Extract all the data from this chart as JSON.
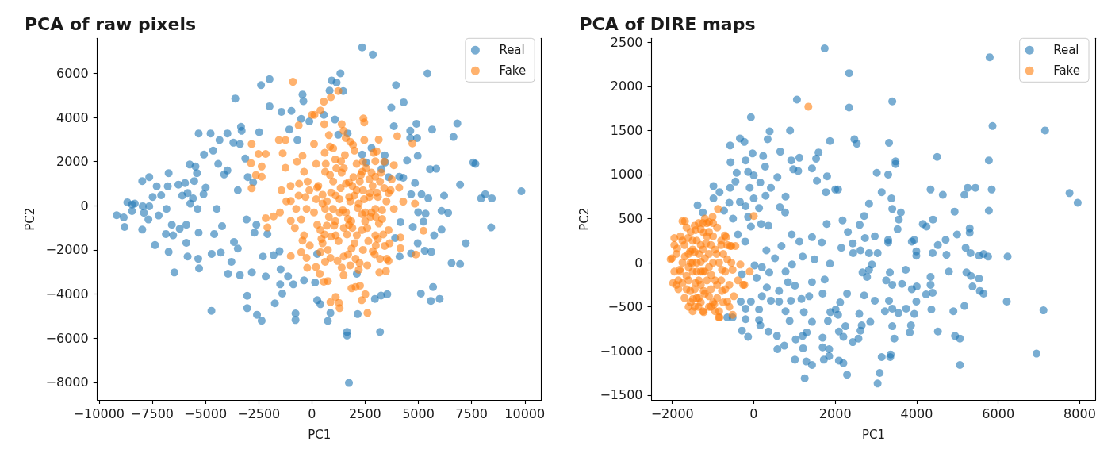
{
  "chart_data": [
    {
      "type": "scatter",
      "title": "PCA of raw pixels",
      "xlabel": "PC1",
      "ylabel": "PC2",
      "marker": "circle",
      "legend": "top right",
      "xlim": [
        -10080,
        10780
      ],
      "ylim": [
        -8800,
        7590
      ],
      "xticks": [
        -10000,
        -7500,
        -5000,
        -2500,
        0,
        2500,
        5000,
        7500,
        10000
      ],
      "yticks": [
        -8000,
        -6000,
        -4000,
        -2000,
        0,
        2000,
        4000,
        6000
      ],
      "series": [
        {
          "name": "Real",
          "color": "#1f77b4",
          "x": [
            -9170,
            -8800,
            -8670,
            -8840,
            -8450,
            -8320,
            -8450,
            -7950,
            -7970,
            -7640,
            -7970,
            -7890,
            -7640,
            -7680,
            -7480,
            -7290,
            -7370,
            -7200,
            -7080,
            -6770,
            -6730,
            -6830,
            -6860,
            -6730,
            -6520,
            -6460,
            -6580,
            -6270,
            -5960,
            -6210,
            -6090,
            -5840,
            -5900,
            -5900,
            -5840,
            -5740,
            -5710,
            -5590,
            -5470,
            -5400,
            -5530,
            -5370,
            -5320,
            -5340,
            -5300,
            -5320,
            -5070,
            -4990,
            -5090,
            -4760,
            -4640,
            -4720,
            -4710,
            -4590,
            -4470,
            -4400,
            -4340,
            -4280,
            -4220,
            -4120,
            -3970,
            -3970,
            -3940,
            -3780,
            -3690,
            -3600,
            -3480,
            -3380,
            -3330,
            -3300,
            -3380,
            -3480,
            -3660,
            -3130,
            -3070,
            -3010,
            -3040,
            -3040,
            -2820,
            -2760,
            -2700,
            -2580,
            -2480,
            -2610,
            -2390,
            -2360,
            -2300,
            -2170,
            -2090,
            -1990,
            -1990,
            -1800,
            -1740,
            -1520,
            -1470,
            -1430,
            -1490,
            -1390,
            -1120,
            -1060,
            -960,
            -870,
            -770,
            -770,
            -440,
            -400,
            -370,
            -500,
            -680,
            -120,
            2360,
            2860,
            1340,
            930,
            1160,
            830,
            1470,
            3950,
            5430,
            4310,
            3730,
            560,
            1080,
            3850,
            4910,
            5650,
            6830,
            6650,
            4620,
            4620,
            4940,
            1240,
            1680,
            2800,
            3420,
            2360,
            4970,
            4470,
            3440,
            3270,
            5550,
            5840,
            7580,
            7680,
            4840,
            4290,
            6960,
            4660,
            5150,
            5470,
            6210,
            8140,
            7950,
            8450,
            9840,
            4990,
            5340,
            6090,
            6400,
            4740,
            5240,
            6090,
            8420,
            5740,
            4970,
            7230,
            4660,
            5300,
            5610,
            6560,
            6960,
            4120,
            3910,
            4160,
            250,
            150,
            250,
            400,
            870,
            750,
            2150,
            2960,
            3250,
            3540,
            5120,
            5690,
            5590,
            6000,
            1650,
            1650,
            3200,
            1740,
            2110,
            4100,
            3600,
            2550
          ],
          "values": [
            -430,
            -960,
            160,
            -530,
            60,
            100,
            -240,
            -20,
            1120,
            1300,
            -1080,
            -320,
            -20,
            -620,
            400,
            880,
            -1780,
            -440,
            480,
            880,
            1480,
            -140,
            -1280,
            -2090,
            -1340,
            -3020,
            -860,
            960,
            1030,
            -1040,
            460,
            580,
            -860,
            -1680,
            -2300,
            1870,
            100,
            340,
            1780,
            1480,
            1120,
            -140,
            -1220,
            -2400,
            -2840,
            3280,
            2320,
            820,
            520,
            3280,
            2500,
            -4760,
            -2180,
            -1280,
            -140,
            1900,
            2980,
            -2120,
            -920,
            1420,
            3280,
            1600,
            -3080,
            -2540,
            2860,
            4860,
            700,
            2800,
            3580,
            3400,
            -3140,
            -1940,
            -1640,
            2140,
            -620,
            1300,
            -4080,
            -4640,
            -3020,
            1060,
            -1220,
            -4940,
            3340,
            -860,
            5470,
            -5210,
            -2300,
            -3200,
            -1280,
            5740,
            4510,
            -2240,
            -4420,
            -2060,
            -2880,
            4260,
            -3560,
            -3980,
            -3200,
            3460,
            4300,
            -3560,
            -4880,
            -5180,
            5040,
            4740,
            -3380,
            3940,
            2980,
            3820,
            7180,
            6850,
            6000,
            5680,
            5590,
            5220,
            5200,
            5470,
            6000,
            4690,
            4450,
            4120,
            3910,
            3610,
            3720,
            3460,
            3730,
            3120,
            3400,
            3070,
            3070,
            3220,
            3280,
            2620,
            2290,
            2320,
            2260,
            2050,
            1960,
            1660,
            1660,
            1680,
            1960,
            1900,
            1030,
            1270,
            960,
            520,
            520,
            340,
            460,
            520,
            340,
            340,
            660,
            -290,
            -360,
            -230,
            -320,
            -960,
            -720,
            -1080,
            -980,
            -1340,
            -1700,
            -1700,
            -2160,
            -2040,
            -2090,
            -2600,
            -2640,
            -2300,
            -1460,
            -740,
            -2180,
            -3480,
            -4280,
            -4460,
            -4860,
            -5220,
            -4910,
            -4220,
            -4070,
            -4010,
            -3980,
            -3680,
            -4310,
            -4220,
            -5720,
            -5880,
            -5720,
            -8030,
            -3080,
            1320,
            1300,
            1960
          ]
        },
        {
          "name": "Fake",
          "color": "#ff7f0e",
          "x": [
            -890,
            -2830,
            -2860,
            -2830,
            -2360,
            -2510,
            -2170,
            -2630,
            -2360,
            -2170,
            -2090,
            -1800,
            -1550,
            -1240,
            -1370,
            -620,
            -990,
            -250,
            -220,
            -440,
            -990,
            -1430,
            -1240,
            -620,
            -990,
            -440,
            0,
            1240,
            560,
            890,
            400,
            120,
            580,
            2420,
            2460,
            1490,
            1590,
            2460,
            3140,
            4010,
            4720,
            1930,
            850,
            3040,
            3850,
            2980,
            4100,
            4290,
            4840,
            5240,
            4160,
            4160,
            4880,
            3520,
            3480,
            3170,
            2050,
            2260,
            1860,
            2510,
            2340,
            2610,
            1120,
            1270,
            1300,
            870,
            560,
            750,
            190,
            370,
            870,
            1490,
            2240,
            2860,
            3420,
            3600,
            3850,
            3600,
            2980,
            2360,
            1740,
            1120,
            500,
            250,
            620,
            1120,
            1740,
            2360,
            2980,
            1370,
            620,
            250,
            1990,
            2730,
            990,
            2110,
            2980,
            1490,
            1860,
            620,
            -370,
            -250,
            -500,
            -120,
            -740,
            -370,
            500,
            800,
            1300,
            1600,
            1900,
            2200,
            2500,
            2700,
            3100,
            3300,
            1000,
            400,
            1500,
            2000,
            2600,
            3200,
            700,
            1800,
            2400,
            1100,
            3000,
            1400,
            200,
            3400,
            2800,
            1700,
            600,
            2100,
            -200,
            3700,
            100,
            300,
            450,
            650,
            750,
            900,
            1050,
            1150,
            1250,
            1350,
            1450,
            1550,
            1650,
            1750,
            1850,
            1950,
            2050,
            2150,
            2250,
            2350,
            2450,
            2550,
            2650,
            2750,
            2850,
            2950,
            3050,
            3150,
            3250,
            3350,
            3500,
            3650,
            3750,
            200,
            400,
            700,
            850,
            1000,
            1200,
            1400,
            1600,
            1800,
            2000,
            2200,
            2400,
            2600,
            2800,
            3000,
            3200,
            3400,
            -100,
            -300,
            -600,
            -800,
            -500,
            -1000,
            -1200,
            -1500,
            -700,
            1300,
            1700,
            2100,
            2500,
            900,
            500,
            1900,
            2300,
            2700,
            3100,
            1100,
            600,
            1500,
            2900,
            3300,
            100,
            3600,
            2400,
            1800,
            800,
            1400
          ],
          "values": [
            5620,
            2800,
            1930,
            790,
            1780,
            2350,
            2350,
            1390,
            1320,
            -560,
            -980,
            -480,
            2980,
            2980,
            2380,
            3640,
            -2280,
            -2360,
            -2810,
            -1580,
            -680,
            700,
            1720,
            460,
            220,
            2260,
            4120,
            5200,
            4720,
            4920,
            4320,
            4120,
            3700,
            3960,
            3780,
            3400,
            3070,
            2980,
            3000,
            3160,
            2830,
            2760,
            2680,
            2470,
            1840,
            1320,
            820,
            190,
            100,
            -1130,
            -1440,
            -1920,
            -2210,
            -2400,
            -2960,
            -3020,
            -3680,
            -3620,
            -3740,
            -4010,
            -4280,
            -4860,
            -4130,
            -4400,
            -4640,
            -4370,
            -3440,
            -3410,
            -2780,
            -3080,
            -2360,
            -2300,
            -2600,
            -2060,
            -1820,
            -1100,
            -140,
            580,
            -140,
            -380,
            -860,
            -1340,
            -1700,
            -860,
            -140,
            460,
            1060,
            1540,
            2020,
            2020,
            1540,
            820,
            460,
            580,
            -140,
            -1340,
            -1340,
            -3140,
            -1940,
            -2540,
            1540,
            -140,
            -620,
            700,
            -140,
            -1340,
            500,
            -500,
            300,
            -300,
            900,
            100,
            -700,
            1200,
            400,
            -600,
            1100,
            -1100,
            -1000,
            -1700,
            -1000,
            1100,
            200,
            200,
            700,
            -700,
            -1800,
            1500,
            300,
            2000,
            -300,
            -2200,
            2400,
            1900,
            1100,
            700,
            -300,
            900,
            -1500,
            1900,
            -2000,
            600,
            -900,
            1700,
            -1600,
            800,
            -200,
            2300,
            -1300,
            400,
            -700,
            1300,
            -2400,
            -100,
            1100,
            -1100,
            300,
            1700,
            -1600,
            -500,
            900,
            -2200,
            600,
            -800,
            1500,
            -1300,
            200,
            -1700,
            1200,
            1900,
            -2100,
            -900,
            1400,
            2600,
            -2500,
            -2800,
            1000,
            -2700,
            2500,
            -2900,
            2000,
            -2700,
            1500,
            -500,
            -2400,
            800,
            -1800,
            400,
            1000,
            -1000,
            -2100,
            900,
            200,
            -300,
            2000,
            -300,
            -600,
            700,
            -300,
            -1400,
            100,
            -1000,
            1400,
            400,
            -1500,
            2100,
            -1300,
            1700,
            2400,
            -200,
            2800,
            -2500,
            -2000,
            2900,
            3200,
            3700
          ]
        }
      ]
    },
    {
      "type": "scatter",
      "title": "PCA of DIRE maps",
      "xlabel": "PC1",
      "ylabel": "PC2",
      "marker": "circle",
      "legend": "top right",
      "xlim": [
        -2510,
        8390
      ],
      "ylim": [
        -1556,
        2545
      ],
      "xticks": [
        -2000,
        0,
        2000,
        4000,
        6000,
        8000
      ],
      "yticks": [
        -1500,
        -1000,
        -500,
        0,
        500,
        1000,
        1500,
        2000,
        2500
      ],
      "series": [
        {
          "name": "Real",
          "color": "#1f77b4",
          "x": [
            1740,
            1060,
            -70,
            390,
            340,
            890,
            1870,
            -340,
            -230,
            -580,
            -570,
            -200,
            -30,
            230,
            650,
            920,
            1120,
            1590,
            1530,
            1430,
            970,
            1090,
            280,
            -420,
            -140,
            0,
            580,
            1800,
            1550,
            160,
            -450,
            -990,
            -580,
            -100,
            420,
            1770,
            2000,
            -840,
            -990,
            290,
            780,
            0,
            -1380,
            -340,
            -600,
            -200,
            640,
            770,
            -1250,
            -730,
            130,
            -140,
            180,
            360,
            -70,
            1790,
            -510,
            930,
            1430,
            1120,
            1670,
            680,
            -210,
            -390,
            310,
            520,
            1200,
            1490,
            1870,
            20,
            200,
            380,
            780,
            940,
            840,
            1010,
            1430,
            1740,
            -290,
            70,
            320,
            620,
            200,
            -70,
            420,
            620,
            910,
            1170,
            1360,
            1690,
            -320,
            -200,
            130,
            780,
            1230,
            1880,
            2010,
            -200,
            130,
            160,
            880,
            1430,
            1820,
            -290,
            -140,
            360,
            570,
            750,
            1030,
            1200,
            1300,
            1690,
            580,
            1210,
            1690,
            1850,
            1010,
            1290,
            1430,
            1720,
            1250,
            1850,
            -520,
            -650,
            5790,
            2340,
            2340,
            3400,
            5860,
            7150,
            2470,
            2530,
            3320,
            4500,
            3480,
            3480,
            5770,
            3020,
            3300,
            2070,
            3140,
            4340,
            4640,
            5170,
            5250,
            5440,
            5840,
            7750,
            7950,
            2830,
            3380,
            3400,
            3610,
            3560,
            4930,
            5770,
            2710,
            2180,
            2600,
            2310,
            3530,
            4150,
            4240,
            4400,
            5300,
            5300,
            4990,
            4710,
            4520,
            3940,
            3880,
            2970,
            2730,
            3300,
            3300,
            2430,
            2150,
            2440,
            2620,
            2830,
            3040,
            3990,
            3990,
            4390,
            4730,
            5200,
            5320,
            5530,
            5640,
            5750,
            6230,
            2900,
            2830,
            2670,
            2780,
            3730,
            3340,
            3250,
            3400,
            3640,
            4790,
            5220,
            5330,
            5530,
            5370,
            5550,
            5640,
            3880,
            4000,
            4340,
            4340,
            4390,
            4230,
            3990,
            4360,
            4900,
            5170,
            6210,
            7110,
            3940,
            3740,
            3550,
            3400,
            3320,
            3220,
            2970,
            2590,
            2710,
            2290,
            2120,
            2070,
            2250,
            2650,
            2860,
            2620,
            2570,
            2430,
            2200,
            2090,
            3400,
            3450,
            3860,
            3830,
            4520,
            4940,
            5060,
            3140,
            3360,
            3350,
            3090,
            3040,
            5060,
            6940,
            2090,
            2200,
            2290
          ],
          "values": [
            2430,
            1850,
            1650,
            1490,
            1400,
            1500,
            1380,
            1410,
            1370,
            1330,
            1140,
            1160,
            1240,
            1210,
            1260,
            1160,
            1190,
            1250,
            1180,
            1070,
            1060,
            1040,
            1090,
            1020,
            1030,
            990,
            970,
            980,
            930,
            910,
            920,
            870,
            850,
            850,
            850,
            800,
            830,
            800,
            730,
            760,
            750,
            730,
            650,
            690,
            680,
            640,
            630,
            570,
            570,
            590,
            620,
            520,
            440,
            420,
            410,
            440,
            500,
            320,
            290,
            240,
            230,
            190,
            240,
            320,
            140,
            50,
            70,
            40,
            -10,
            -30,
            -50,
            -110,
            -100,
            -20,
            -220,
            -260,
            -220,
            -190,
            -130,
            -170,
            -280,
            -320,
            -380,
            -440,
            -430,
            -440,
            -430,
            -410,
            -380,
            -350,
            -440,
            -520,
            -530,
            -550,
            -560,
            -560,
            -530,
            -640,
            -650,
            -710,
            -660,
            -670,
            -660,
            -770,
            -840,
            -780,
            -830,
            -940,
            -870,
            -830,
            -790,
            -850,
            -980,
            -970,
            -960,
            -980,
            -1100,
            -1120,
            -1160,
            -1100,
            -1310,
            -1060,
            -620,
            -620,
            2330,
            2150,
            1760,
            1830,
            1550,
            1500,
            1400,
            1350,
            1360,
            1200,
            1150,
            1120,
            1160,
            1020,
            1000,
            830,
            800,
            830,
            770,
            770,
            850,
            850,
            830,
            790,
            680,
            670,
            730,
            610,
            570,
            490,
            580,
            590,
            530,
            480,
            430,
            350,
            380,
            440,
            410,
            490,
            390,
            340,
            320,
            260,
            200,
            260,
            240,
            300,
            280,
            260,
            230,
            220,
            170,
            110,
            140,
            110,
            110,
            130,
            80,
            110,
            90,
            170,
            110,
            80,
            100,
            70,
            70,
            -20,
            -80,
            -110,
            -160,
            -80,
            -110,
            -200,
            -250,
            -240,
            -100,
            -110,
            -150,
            -180,
            -270,
            -320,
            -350,
            -300,
            -270,
            -160,
            -250,
            -340,
            -360,
            -440,
            -530,
            -550,
            -490,
            -440,
            -540,
            -580,
            -520,
            -570,
            -520,
            -430,
            -550,
            -430,
            -580,
            -370,
            -350,
            -450,
            -590,
            -720,
            -710,
            -670,
            -770,
            -860,
            -900,
            -840,
            -780,
            -720,
            -860,
            -710,
            -790,
            -780,
            -830,
            -860,
            -1070,
            -1040,
            -1070,
            -1250,
            -1370,
            -1160,
            -1030,
            -1110,
            -1140,
            -1270
          ]
        },
        {
          "name": "Fake",
          "color": "#ff7f0e",
          "x": [
            -2010,
            -1980,
            -1950,
            -1690,
            -1230,
            -880,
            -1010,
            -840,
            -520,
            -490,
            -680,
            -580,
            -330,
            -100,
            -260,
            0,
            -1490,
            -1820,
            -1430,
            -1100,
            -1170,
            -1560,
            -1300,
            -1040,
            -1430,
            -1100,
            -780,
            -780,
            -910,
            -1690,
            -970,
            -650,
            -1230,
            -1620,
            -1750,
            -650,
            -520,
            -1360,
            -1880,
            -1560,
            -1230,
            -450,
            -390,
            -860,
            -230,
            -550,
            -710,
            1340,
            -1750,
            -2040,
            -1500,
            -1300,
            -1200,
            -1400,
            -1600,
            -1100,
            -1300,
            -1500,
            -1000,
            -1250,
            -1350,
            -900,
            -800,
            -1650,
            -1450,
            -1950,
            -1900,
            -1850,
            -1800,
            -1750,
            -1700,
            -1700,
            -1650,
            -1600,
            -1600,
            -1550,
            -1550,
            -1500,
            -1500,
            -1450,
            -1450,
            -1400,
            -1400,
            -1350,
            -1350,
            -1300,
            -1300,
            -1250,
            -1250,
            -1200,
            -1200,
            -1150,
            -1150,
            -1100,
            -1100,
            -1050,
            -1050,
            -1000,
            -1000,
            -950,
            -950,
            -900,
            -900,
            -850,
            -850,
            -800,
            -800,
            -750,
            -750,
            -700,
            -700,
            -650,
            -600,
            -600,
            -550,
            -1850,
            -1800,
            -1750,
            -1650,
            -1600,
            -1550,
            -1450,
            -1400,
            -1350,
            -1300,
            -1250,
            -1150,
            -1100,
            -1050,
            -950,
            -1950,
            -1900,
            -1500,
            -1200,
            -1000
          ],
          "values": [
            50,
            -230,
            280,
            470,
            -560,
            610,
            520,
            -620,
            -590,
            -380,
            290,
            190,
            -20,
            -100,
            -250,
            530,
            -410,
            -80,
            370,
            460,
            220,
            130,
            10,
            -140,
            -230,
            -380,
            -320,
            -80,
            100,
            70,
            -470,
            40,
            340,
            280,
            -230,
            -440,
            -80,
            -500,
            160,
            -320,
            -320,
            190,
            -200,
            -620,
            -250,
            190,
            310,
            1770,
            470,
            40,
            0,
            200,
            -100,
            -100,
            -50,
            100,
            -250,
            250,
            300,
            450,
            -400,
            -250,
            200,
            -150,
            120,
            -100,
            100,
            -300,
            300,
            0,
            -400,
            200,
            400,
            -200,
            100,
            -450,
            350,
            -100,
            150,
            -300,
            420,
            0,
            250,
            -200,
            100,
            -450,
            380,
            -100,
            150,
            -350,
            50,
            -200,
            300,
            -500,
            -50,
            200,
            -300,
            0,
            -450,
            150,
            -200,
            400,
            -400,
            0,
            -550,
            250,
            -200,
            -450,
            100,
            -100,
            -300,
            200,
            -250,
            -500,
            0,
            -200,
            -100,
            250,
            -300,
            -500,
            0,
            -500,
            -400,
            450,
            -100,
            -550,
            450,
            350,
            -500,
            -550,
            200,
            -250,
            -550,
            500,
            450
          ]
        }
      ]
    }
  ]
}
